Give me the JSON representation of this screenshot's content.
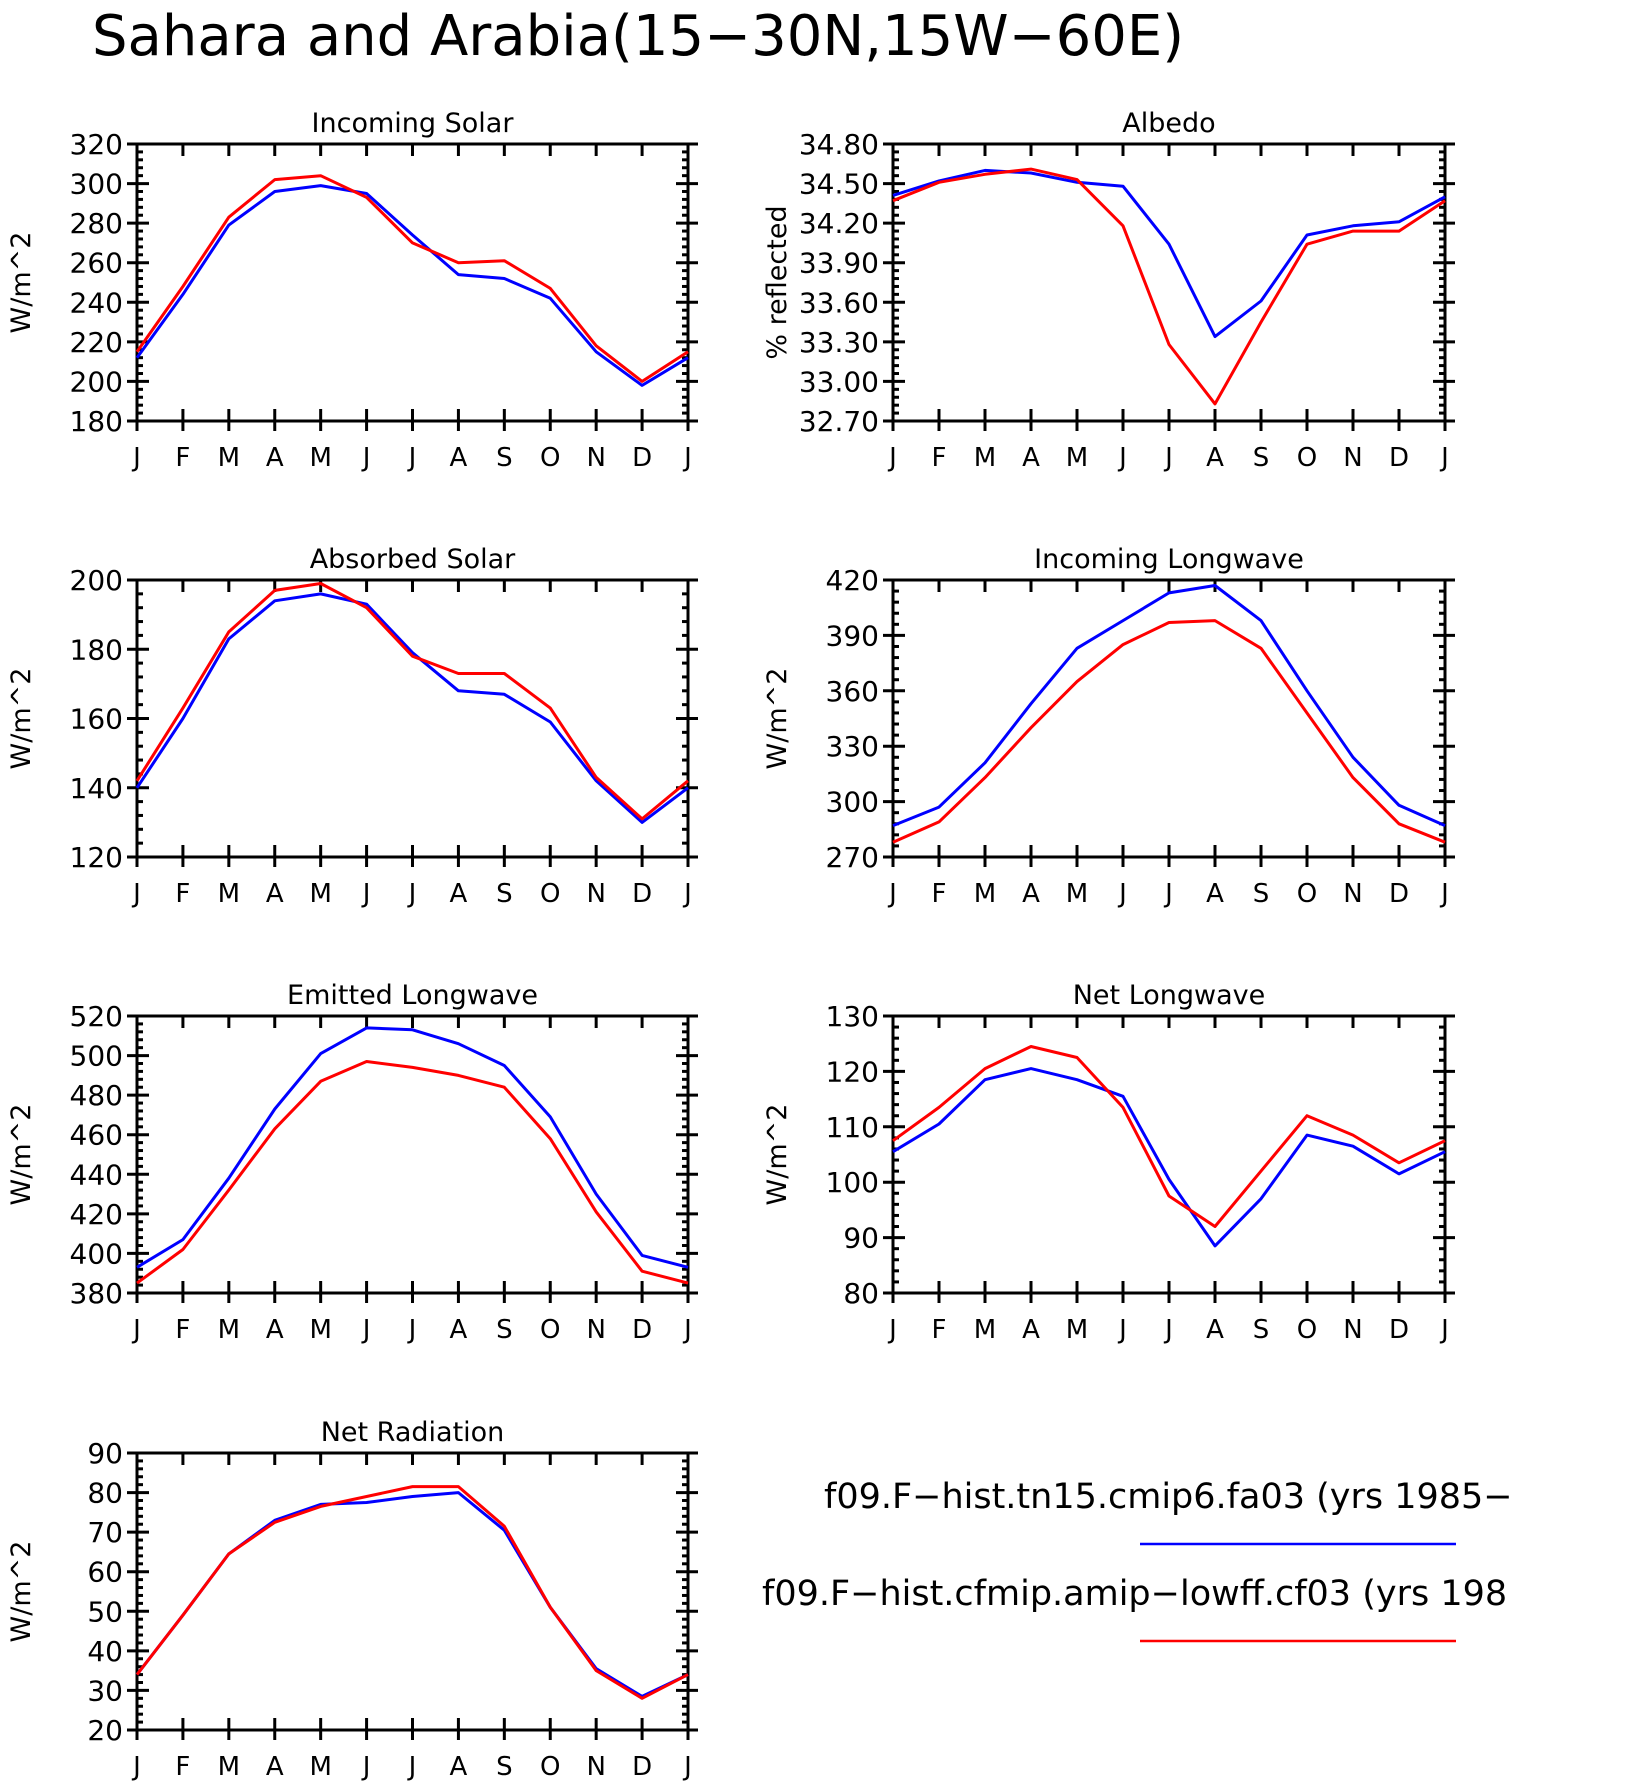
{
  "main_title": "Sahara and Arabia(15−30N,15W−60E)",
  "legend": [
    {
      "label": "f09.F−hist.tn15.cmip6.fa03 (yrs 1985−",
      "color": "#0000ff"
    },
    {
      "label": "f09.F−hist.cfmip.amip−lowff.cf03 (yrs 198",
      "color": "#ff0000"
    }
  ],
  "months": [
    "J",
    "F",
    "M",
    "A",
    "M",
    "J",
    "J",
    "A",
    "S",
    "O",
    "N",
    "D",
    "J"
  ],
  "chart_data": [
    {
      "type": "line",
      "title": "Incoming Solar",
      "ylabel": "W/m^2",
      "ylim": [
        180,
        320
      ],
      "yticks": [
        "180",
        "200",
        "220",
        "240",
        "260",
        "280",
        "300",
        "320"
      ],
      "x": [
        "J",
        "F",
        "M",
        "A",
        "M",
        "J",
        "J",
        "A",
        "S",
        "O",
        "N",
        "D",
        "J"
      ],
      "series": [
        {
          "color": "#0000ff",
          "values": [
            212,
            244,
            279,
            296,
            299,
            295,
            274,
            254,
            252,
            242,
            215,
            198,
            212
          ]
        },
        {
          "color": "#ff0000",
          "values": [
            215,
            248,
            283,
            302,
            304,
            293,
            270,
            260,
            261,
            247,
            218,
            200,
            215
          ]
        }
      ]
    },
    {
      "type": "line",
      "title": "Albedo",
      "ylabel": "% reflected",
      "ylim": [
        32.7,
        34.8
      ],
      "yticks": [
        "32.70",
        "33.00",
        "33.30",
        "33.60",
        "33.90",
        "34.20",
        "34.50",
        "34.80"
      ],
      "x": [
        "J",
        "F",
        "M",
        "A",
        "M",
        "J",
        "J",
        "A",
        "S",
        "O",
        "N",
        "D",
        "J"
      ],
      "series": [
        {
          "color": "#0000ff",
          "values": [
            34.41,
            34.52,
            34.6,
            34.58,
            34.51,
            34.48,
            34.04,
            33.34,
            33.61,
            34.11,
            34.18,
            34.21,
            34.4
          ]
        },
        {
          "color": "#ff0000",
          "values": [
            34.37,
            34.51,
            34.57,
            34.61,
            34.53,
            34.18,
            33.28,
            32.83,
            33.45,
            34.04,
            34.14,
            34.14,
            34.37
          ]
        }
      ]
    },
    {
      "type": "line",
      "title": "Absorbed Solar",
      "ylabel": "W/m^2",
      "ylim": [
        120,
        200
      ],
      "yticks": [
        "120",
        "140",
        "160",
        "180",
        "200"
      ],
      "x": [
        "J",
        "F",
        "M",
        "A",
        "M",
        "J",
        "J",
        "A",
        "S",
        "O",
        "N",
        "D",
        "J"
      ],
      "series": [
        {
          "color": "#0000ff",
          "values": [
            140,
            160,
            183,
            194,
            196,
            193,
            179,
            168,
            167,
            159,
            142,
            130,
            140
          ]
        },
        {
          "color": "#ff0000",
          "values": [
            142,
            163,
            185,
            197,
            199,
            192,
            178,
            173,
            173,
            163,
            143,
            131,
            142
          ]
        }
      ]
    },
    {
      "type": "line",
      "title": "Incoming Longwave",
      "ylabel": "W/m^2",
      "ylim": [
        270,
        420
      ],
      "yticks": [
        "270",
        "300",
        "330",
        "360",
        "390",
        "420"
      ],
      "x": [
        "J",
        "F",
        "M",
        "A",
        "M",
        "J",
        "J",
        "A",
        "S",
        "O",
        "N",
        "D",
        "J"
      ],
      "series": [
        {
          "color": "#0000ff",
          "values": [
            287,
            297,
            321,
            353,
            383,
            398,
            413,
            417,
            398,
            360,
            324,
            298,
            287
          ]
        },
        {
          "color": "#ff0000",
          "values": [
            278,
            289,
            313,
            340,
            365,
            385,
            397,
            398,
            383,
            348,
            313,
            288,
            278
          ]
        }
      ]
    },
    {
      "type": "line",
      "title": "Emitted Longwave",
      "ylabel": "W/m^2",
      "ylim": [
        380,
        520
      ],
      "yticks": [
        "380",
        "400",
        "420",
        "440",
        "460",
        "480",
        "500",
        "520"
      ],
      "x": [
        "J",
        "F",
        "M",
        "A",
        "M",
        "J",
        "J",
        "A",
        "S",
        "O",
        "N",
        "D",
        "J"
      ],
      "series": [
        {
          "color": "#0000ff",
          "values": [
            393,
            407,
            438,
            473,
            501,
            514,
            513,
            506,
            495,
            469,
            430,
            399,
            393
          ]
        },
        {
          "color": "#ff0000",
          "values": [
            385,
            402,
            432,
            463,
            487,
            497,
            494,
            490,
            484,
            458,
            421,
            391,
            385
          ]
        }
      ]
    },
    {
      "type": "line",
      "title": "Net Longwave",
      "ylabel": "W/m^2",
      "ylim": [
        80,
        130
      ],
      "yticks": [
        "80",
        "90",
        "100",
        "110",
        "120",
        "130"
      ],
      "x": [
        "J",
        "F",
        "M",
        "A",
        "M",
        "J",
        "J",
        "A",
        "S",
        "O",
        "N",
        "D",
        "J"
      ],
      "series": [
        {
          "color": "#0000ff",
          "values": [
            105.5,
            110.5,
            118.5,
            120.5,
            118.5,
            115.5,
            100.5,
            88.5,
            97,
            108.5,
            106.5,
            101.5,
            105.5
          ]
        },
        {
          "color": "#ff0000",
          "values": [
            107.5,
            113.5,
            120.5,
            124.5,
            122.5,
            113.5,
            97.5,
            92,
            102,
            112,
            108.5,
            103.5,
            107.5
          ]
        }
      ]
    },
    {
      "type": "line",
      "title": "Net Radiation",
      "ylabel": "W/m^2",
      "ylim": [
        20,
        90
      ],
      "yticks": [
        "20",
        "30",
        "40",
        "50",
        "60",
        "70",
        "80",
        "90"
      ],
      "x": [
        "J",
        "F",
        "M",
        "A",
        "M",
        "J",
        "J",
        "A",
        "S",
        "O",
        "N",
        "D",
        "J"
      ],
      "series": [
        {
          "color": "#0000ff",
          "values": [
            34,
            49,
            64.5,
            73,
            77,
            77.5,
            79,
            80,
            70.5,
            51,
            35.5,
            28.5,
            34
          ]
        },
        {
          "color": "#ff0000",
          "values": [
            34,
            49,
            64.5,
            72.5,
            76.5,
            79,
            81.5,
            81.5,
            71.5,
            51,
            35,
            28,
            34
          ]
        }
      ]
    }
  ]
}
